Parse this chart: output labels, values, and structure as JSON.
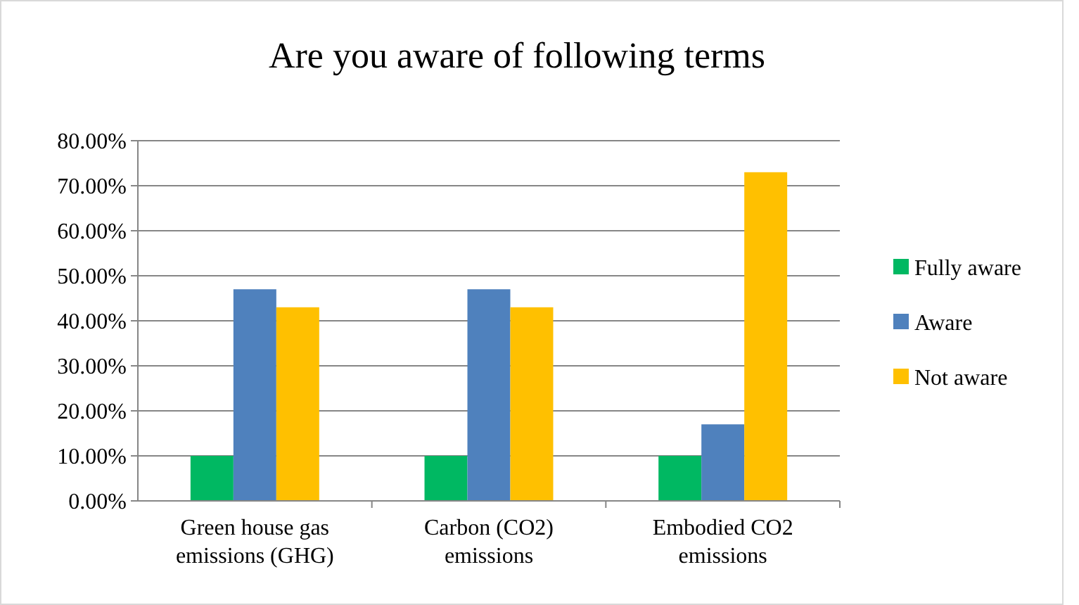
{
  "chart_data": {
    "type": "bar",
    "title": "Are you aware of following terms",
    "categories": [
      "Green house gas emissions (GHG)",
      "Carbon (CO2) emissions",
      "Embodied CO2 emissions"
    ],
    "series": [
      {
        "name": "Fully aware",
        "color": "#00b862",
        "values": [
          10,
          10,
          10
        ]
      },
      {
        "name": "Aware",
        "color": "#4f81bd",
        "values": [
          47,
          47,
          17
        ]
      },
      {
        "name": "Not aware",
        "color": "#ffc000",
        "values": [
          43,
          43,
          73
        ]
      }
    ],
    "ylim": [
      0,
      80
    ],
    "yticks": [
      {
        "value": 0,
        "label": "0.00%"
      },
      {
        "value": 10,
        "label": "10.00%"
      },
      {
        "value": 20,
        "label": "20.00%"
      },
      {
        "value": 30,
        "label": "30.00%"
      },
      {
        "value": 40,
        "label": "40.00%"
      },
      {
        "value": 50,
        "label": "50.00%"
      },
      {
        "value": 60,
        "label": "60.00%"
      },
      {
        "value": 70,
        "label": "70.00%"
      },
      {
        "value": 80,
        "label": "80.00%"
      }
    ],
    "grid": "y",
    "legend": "right"
  }
}
